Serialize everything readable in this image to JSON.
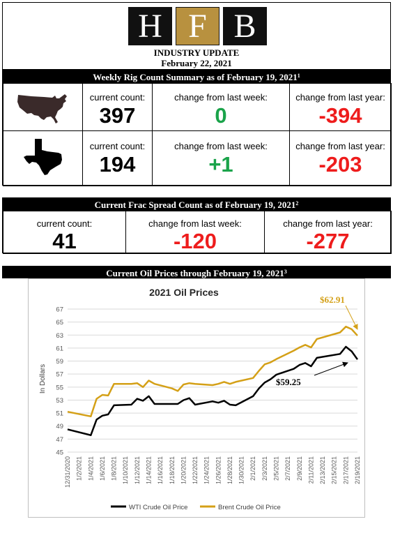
{
  "header": {
    "logo_letters": [
      "H",
      "F",
      "B"
    ],
    "title": "INDUSTRY UPDATE",
    "date": "February 22, 2021"
  },
  "rig_section": {
    "title": "Weekly Rig Count Summary as of February 19, 2021",
    "footnote": "1",
    "rows": [
      {
        "region_icon": "usa-map-icon",
        "current_label": "current count:",
        "current_value": "397",
        "week_label": "change from last week:",
        "week_value": "0",
        "week_color": "#1aa34a",
        "year_label": "change from last year:",
        "year_value": "-394",
        "year_color": "#ee1c1c"
      },
      {
        "region_icon": "texas-map-icon",
        "current_label": "current count:",
        "current_value": "194",
        "week_label": "change from last week:",
        "week_value": "+1",
        "week_color": "#1aa34a",
        "year_label": "change from last year:",
        "year_value": "-203",
        "year_color": "#ee1c1c"
      }
    ]
  },
  "frac_section": {
    "title": "Current Frac Spread Count as of February 19, 2021",
    "footnote": "2",
    "current_label": "current count:",
    "current_value": "41",
    "week_label": "change from last week:",
    "week_value": "-120",
    "year_label": "change from last year:",
    "year_value": "-277"
  },
  "oil_section": {
    "title": "Current Oil Prices through February 19, 2021",
    "footnote": "3"
  },
  "chart_data": {
    "type": "line",
    "title": "2021 Oil Prices",
    "ylabel": "In Dollars",
    "xlabel": "",
    "ylim": [
      45,
      67
    ],
    "yticks": [
      45,
      47,
      49,
      51,
      53,
      55,
      57,
      59,
      61,
      63,
      65,
      67
    ],
    "x_tick_labels": [
      "12/31/2020",
      "1/2/2021",
      "1/4/2021",
      "1/6/2021",
      "1/8/2021",
      "1/10/2021",
      "1/12/2021",
      "1/14/2021",
      "1/16/2021",
      "1/18/2021",
      "1/20/2021",
      "1/22/2021",
      "1/24/2021",
      "1/26/2021",
      "1/28/2021",
      "1/30/2021",
      "2/1/2021",
      "2/3/2021",
      "2/5/2021",
      "2/7/2021",
      "2/9/2021",
      "2/11/2021",
      "2/13/2021",
      "2/15/2021",
      "2/17/2021",
      "2/19/2021"
    ],
    "grid": true,
    "legend_position": "bottom",
    "series": [
      {
        "name": "WTI Crude Oil Price",
        "color": "#000000",
        "points": [
          [
            "12/31/2020",
            48.5
          ],
          [
            "1/4/2021",
            47.6
          ],
          [
            "1/5/2021",
            50.0
          ],
          [
            "1/6/2021",
            50.6
          ],
          [
            "1/7/2021",
            50.8
          ],
          [
            "1/8/2021",
            52.2
          ],
          [
            "1/11/2021",
            52.3
          ],
          [
            "1/12/2021",
            53.2
          ],
          [
            "1/13/2021",
            52.9
          ],
          [
            "1/14/2021",
            53.6
          ],
          [
            "1/15/2021",
            52.4
          ],
          [
            "1/19/2021",
            52.4
          ],
          [
            "1/20/2021",
            53.0
          ],
          [
            "1/21/2021",
            53.3
          ],
          [
            "1/22/2021",
            52.3
          ],
          [
            "1/25/2021",
            52.8
          ],
          [
            "1/26/2021",
            52.6
          ],
          [
            "1/27/2021",
            52.9
          ],
          [
            "1/28/2021",
            52.3
          ],
          [
            "1/29/2021",
            52.2
          ],
          [
            "2/1/2021",
            53.6
          ],
          [
            "2/2/2021",
            54.8
          ],
          [
            "2/3/2021",
            55.7
          ],
          [
            "2/4/2021",
            56.2
          ],
          [
            "2/5/2021",
            56.9
          ],
          [
            "2/8/2021",
            57.8
          ],
          [
            "2/9/2021",
            58.4
          ],
          [
            "2/10/2021",
            58.7
          ],
          [
            "2/11/2021",
            58.2
          ],
          [
            "2/12/2021",
            59.5
          ],
          [
            "2/16/2021",
            60.1
          ],
          [
            "2/17/2021",
            61.2
          ],
          [
            "2/18/2021",
            60.5
          ],
          [
            "2/19/2021",
            59.25
          ]
        ],
        "annotation": "$59.25"
      },
      {
        "name": "Brent Crude Oil Price",
        "color": "#d4a017",
        "points": [
          [
            "12/31/2020",
            51.2
          ],
          [
            "1/4/2021",
            50.5
          ],
          [
            "1/5/2021",
            53.2
          ],
          [
            "1/6/2021",
            53.8
          ],
          [
            "1/7/2021",
            53.7
          ],
          [
            "1/8/2021",
            55.5
          ],
          [
            "1/11/2021",
            55.5
          ],
          [
            "1/12/2021",
            55.6
          ],
          [
            "1/13/2021",
            55.0
          ],
          [
            "1/14/2021",
            56.0
          ],
          [
            "1/15/2021",
            55.5
          ],
          [
            "1/18/2021",
            54.8
          ],
          [
            "1/19/2021",
            54.4
          ],
          [
            "1/20/2021",
            55.4
          ],
          [
            "1/21/2021",
            55.6
          ],
          [
            "1/22/2021",
            55.5
          ],
          [
            "1/25/2021",
            55.3
          ],
          [
            "1/26/2021",
            55.5
          ],
          [
            "1/27/2021",
            55.8
          ],
          [
            "1/28/2021",
            55.5
          ],
          [
            "1/29/2021",
            55.8
          ],
          [
            "2/1/2021",
            56.4
          ],
          [
            "2/2/2021",
            57.5
          ],
          [
            "2/3/2021",
            58.5
          ],
          [
            "2/4/2021",
            58.8
          ],
          [
            "2/5/2021",
            59.3
          ],
          [
            "2/8/2021",
            60.6
          ],
          [
            "2/9/2021",
            61.1
          ],
          [
            "2/10/2021",
            61.5
          ],
          [
            "2/11/2021",
            61.1
          ],
          [
            "2/12/2021",
            62.4
          ],
          [
            "2/16/2021",
            63.4
          ],
          [
            "2/17/2021",
            64.3
          ],
          [
            "2/18/2021",
            63.9
          ],
          [
            "2/19/2021",
            62.91
          ]
        ],
        "annotation": "$62.91"
      }
    ]
  }
}
